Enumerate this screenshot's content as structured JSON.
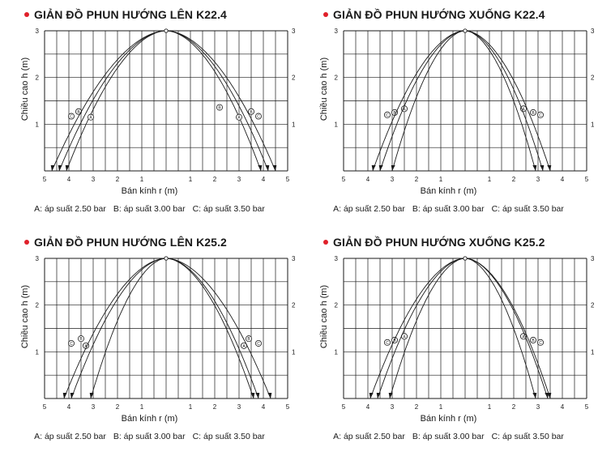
{
  "common": {
    "xlabel": "Bán kính r (m)",
    "ylabel": "Chiều cao h (m)",
    "legend": [
      "A: áp suất 2.50 bar",
      "B: áp suất 3.00 bar",
      "C: áp suất 3.50 bar"
    ],
    "x_ticks": [
      "5",
      "4",
      "3",
      "2",
      "1",
      "",
      "1",
      "2",
      "3",
      "4",
      "5"
    ],
    "y_ticks": [
      "1",
      "2",
      "3"
    ],
    "accent_color": "#e0202a"
  },
  "chart_data": [
    {
      "type": "line",
      "title": "GIẢN ĐỒ PHUN HƯỚNG LÊN K22.4",
      "xlabel": "Bán kính r (m)",
      "ylabel": "Chiều cao h (m)",
      "xlim": [
        -5,
        5
      ],
      "ylim": [
        0,
        3
      ],
      "grid": true,
      "apex": [
        0,
        3
      ],
      "series": [
        {
          "name": "A: áp suất 2.50 bar",
          "marker": "A",
          "x": [
            -4.1,
            0,
            3.9
          ],
          "y": [
            0,
            3,
            0
          ],
          "marker_point": [
            3.0,
            1.15
          ]
        },
        {
          "name": "B: áp suất 3.00 bar",
          "marker": "B",
          "x": [
            -4.4,
            0,
            4.2
          ],
          "y": [
            0,
            3,
            0
          ],
          "marker_point": [
            3.5,
            1.27
          ]
        },
        {
          "name": "C: áp suất 3.50 bar",
          "marker": "C",
          "x": [
            -4.7,
            0,
            4.5
          ],
          "y": [
            0,
            3,
            0
          ],
          "marker_point": [
            3.8,
            1.17
          ]
        }
      ],
      "extra_markers": [
        {
          "label": "B",
          "x": 2.2,
          "y": 1.36
        }
      ]
    },
    {
      "type": "line",
      "title": "GIẢN ĐỒ PHUN HƯỚNG XUỐNG K22.4",
      "xlabel": "Bán kính r (m)",
      "ylabel": "Chiều cao h (m)",
      "xlim": [
        -5,
        5
      ],
      "ylim": [
        0,
        3
      ],
      "grid": true,
      "apex": [
        0,
        3
      ],
      "series": [
        {
          "name": "A: áp suất 2.50 bar",
          "marker": "A",
          "x": [
            -3.0,
            0,
            2.9
          ],
          "y": [
            0,
            3,
            0
          ],
          "marker_point": [
            2.4,
            1.33
          ]
        },
        {
          "name": "B: áp suất 3.00 bar",
          "marker": "B",
          "x": [
            -3.5,
            0,
            3.2
          ],
          "y": [
            0,
            3,
            0
          ],
          "marker_point": [
            2.8,
            1.25
          ]
        },
        {
          "name": "C: áp suất 3.50 bar",
          "marker": "C",
          "x": [
            -3.8,
            0,
            3.5
          ],
          "y": [
            0,
            3,
            0
          ],
          "marker_point": [
            3.1,
            1.2
          ]
        }
      ],
      "extra_markers": []
    },
    {
      "type": "line",
      "title": "GIẢN ĐỒ PHUN HƯỚNG LÊN K25.2",
      "xlabel": "Bán kính r (m)",
      "ylabel": "Chiều cao h (m)",
      "xlim": [
        -5,
        5
      ],
      "ylim": [
        0,
        3
      ],
      "grid": true,
      "apex": [
        0,
        3
      ],
      "series": [
        {
          "name": "A: áp suất 2.50 bar",
          "marker": "A",
          "x": [
            -3.1,
            0,
            3.6
          ],
          "y": [
            0,
            3,
            0
          ],
          "marker_point": [
            3.2,
            1.13
          ]
        },
        {
          "name": "B: áp suất 3.00 bar",
          "marker": "B",
          "x": [
            -3.9,
            0,
            3.8
          ],
          "y": [
            0,
            3,
            0
          ],
          "marker_point": [
            3.4,
            1.28
          ]
        },
        {
          "name": "C: áp suất 3.50 bar",
          "marker": "C",
          "x": [
            -4.2,
            0,
            4.3
          ],
          "y": [
            0,
            3,
            0
          ],
          "marker_point": [
            3.8,
            1.18
          ]
        }
      ],
      "extra_markers": []
    },
    {
      "type": "line",
      "title": "GIẢN ĐỒ PHUN HƯỚNG XUỐNG K25.2",
      "xlabel": "Bán kính r (m)",
      "ylabel": "Chiều cao h (m)",
      "xlim": [
        -5,
        5
      ],
      "ylim": [
        0,
        3
      ],
      "grid": true,
      "apex": [
        0,
        3
      ],
      "series": [
        {
          "name": "A: áp suất 2.50 bar",
          "marker": "A",
          "x": [
            -3.1,
            0,
            2.9
          ],
          "y": [
            0,
            3,
            0
          ],
          "marker_point": [
            2.4,
            1.33
          ]
        },
        {
          "name": "B: áp suất 3.00 bar",
          "marker": "B",
          "x": [
            -3.6,
            0,
            3.4
          ],
          "y": [
            0,
            3,
            0
          ],
          "marker_point": [
            2.8,
            1.25
          ]
        },
        {
          "name": "C: áp suất 3.50 bar",
          "marker": "C",
          "x": [
            -3.9,
            0,
            3.5
          ],
          "y": [
            0,
            3,
            0
          ],
          "marker_point": [
            3.1,
            1.2
          ]
        }
      ],
      "extra_markers": []
    }
  ]
}
